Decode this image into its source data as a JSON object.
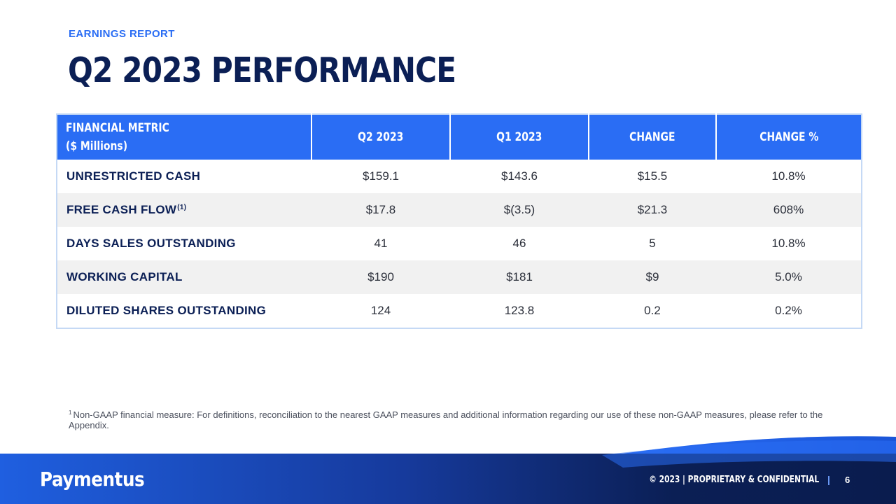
{
  "header": {
    "subtitle": "EARNINGS REPORT",
    "title": "Q2 2023 PERFORMANCE"
  },
  "table": {
    "headers": {
      "metric_line1": "FINANCIAL METRIC",
      "metric_line2": "($ Millions)",
      "q2": "Q2 2023",
      "q1": "Q1 2023",
      "change": "CHANGE",
      "change_pct": "CHANGE %"
    },
    "rows": [
      {
        "label": "UNRESTRICTED CASH",
        "sup": "",
        "q2": "$159.1",
        "q1": "$143.6",
        "change": "$15.5",
        "change_pct": "10.8%"
      },
      {
        "label": "FREE CASH FLOW",
        "sup": "(1)",
        "q2": "$17.8",
        "q1": "$(3.5)",
        "change": "$21.3",
        "change_pct": "608%"
      },
      {
        "label": "DAYS SALES OUTSTANDING",
        "sup": "",
        "q2": "41",
        "q1": "46",
        "change": "5",
        "change_pct": "10.8%"
      },
      {
        "label": "WORKING CAPITAL",
        "sup": "",
        "q2": "$190",
        "q1": "$181",
        "change": "$9",
        "change_pct": "5.0%"
      },
      {
        "label": "DILUTED SHARES OUTSTANDING",
        "sup": "",
        "q2": "124",
        "q1": "123.8",
        "change": "0.2",
        "change_pct": "0.2%"
      }
    ]
  },
  "footnote": {
    "marker": "1",
    "text": "Non-GAAP financial measure: For definitions, reconciliation to the nearest GAAP measures and additional information regarding our use of these non-GAAP measures, please refer to the Appendix."
  },
  "footer": {
    "logo": "Paymentus",
    "copyright": "© 2023  |  PROPRIETARY & CONFIDENTIAL",
    "separator": "|",
    "page_number": "6"
  },
  "colors": {
    "accent": "#2a6df4",
    "navy": "#0b1f55",
    "row_alt": "#f1f1f1"
  }
}
